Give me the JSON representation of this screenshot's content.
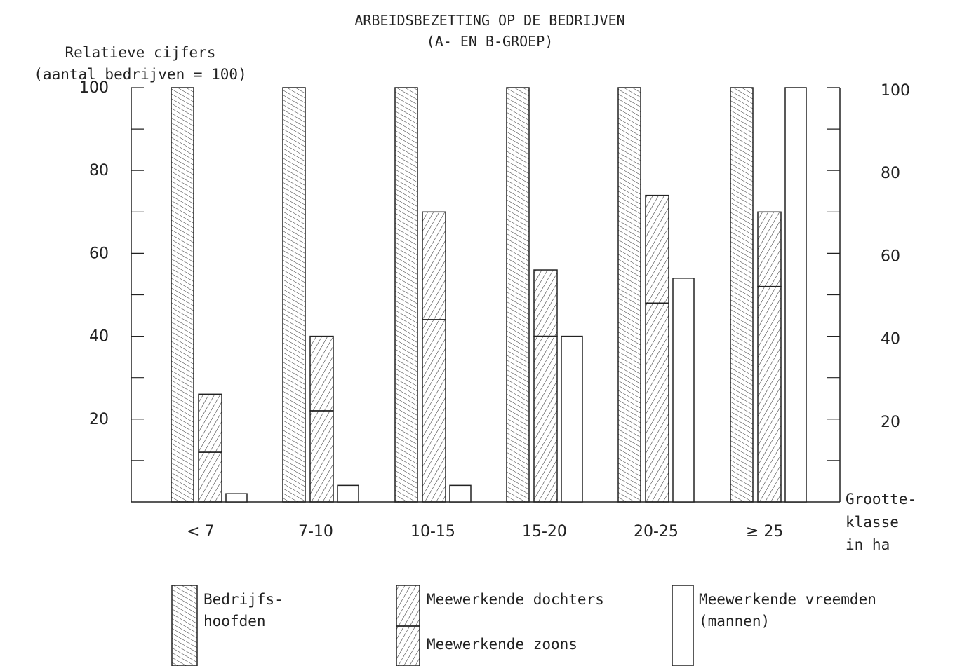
{
  "chart_data": {
    "type": "bar",
    "title": "ARBEIDSBEZETTING OP DE BEDRIJVEN",
    "subtitle": "(A- EN B-GROEP)",
    "ylabel": "Relatieve cijfers",
    "ylabel_sub": "(aantal bedrijven = 100)",
    "xlabel": [
      "Grootte-",
      "klasse",
      "in ha"
    ],
    "categories": [
      "< 7",
      "7-10",
      "10-15",
      "15-20",
      "20-25",
      "≥ 25"
    ],
    "ylim": [
      0,
      100
    ],
    "yticks_labeled": [
      20,
      40,
      60,
      80,
      100
    ],
    "yticks_minor": [
      10,
      30,
      50,
      70,
      90
    ],
    "stacked_series_note": "Meewerkende zoons stacked below Meewerkende dochters in the middle bar",
    "series": [
      {
        "name": "Bedrijfs-\nhoofden",
        "values": [
          100,
          100,
          100,
          100,
          100,
          100
        ]
      },
      {
        "name": "Meewerkende zoons",
        "values": [
          12,
          22,
          44,
          40,
          48,
          52
        ]
      },
      {
        "name": "Meewerkende dochters",
        "values": [
          14,
          18,
          26,
          16,
          26,
          18
        ]
      },
      {
        "name": "Meewerkende vreemden\n(mannen)",
        "values": [
          2,
          4,
          4,
          40,
          54,
          100
        ]
      }
    ],
    "legend": {
      "placement": "bottom",
      "items": [
        {
          "key": "hoofden",
          "lines": [
            "Bedrijfs-",
            "hoofden"
          ],
          "pattern": "hatch-fwd"
        },
        {
          "key": "dochters",
          "lines": [
            "Meewerkende dochters"
          ],
          "pattern": "hatch-back"
        },
        {
          "key": "zoons",
          "lines": [
            "Meewerkende zoons"
          ],
          "pattern": "hatch-back"
        },
        {
          "key": "vreemden",
          "lines": [
            "Meewerkende vreemden",
            "(mannen)"
          ],
          "pattern": "none"
        }
      ]
    },
    "grid": false
  }
}
